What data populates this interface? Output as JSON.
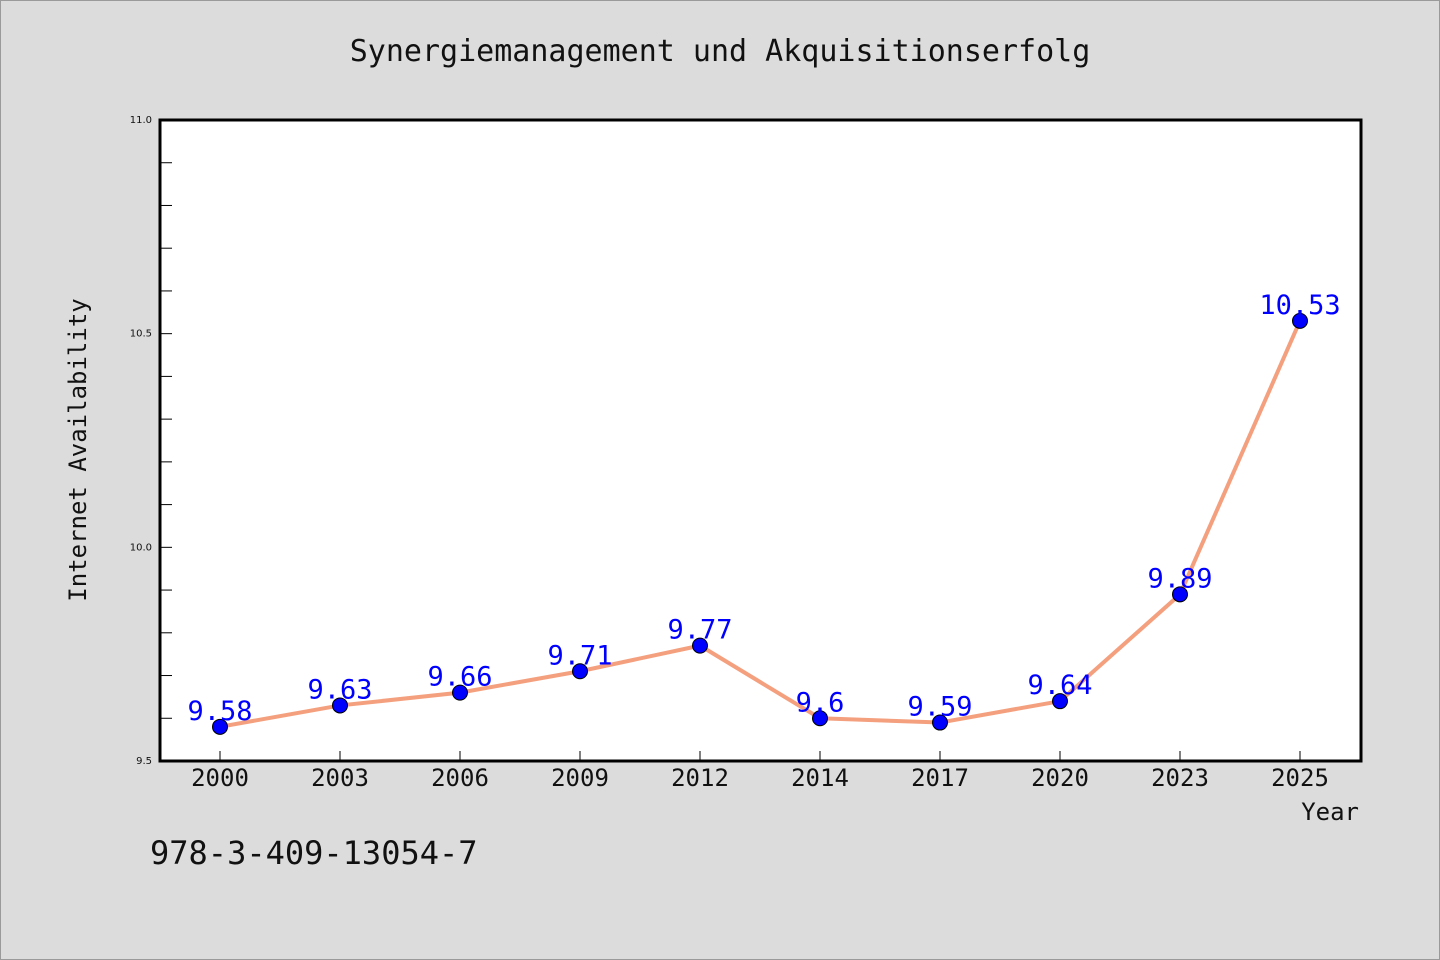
{
  "chart_data": {
    "type": "line",
    "title": "Synergiemanagement und Akquisitionserfolg",
    "xlabel": "Year",
    "ylabel": "Internet Availability",
    "categories": [
      "2000",
      "2003",
      "2006",
      "2009",
      "2012",
      "2014",
      "2017",
      "2020",
      "2023",
      "2025"
    ],
    "series": [
      {
        "values": [
          9.58,
          9.63,
          9.66,
          9.71,
          9.77,
          9.6,
          9.59,
          9.64,
          9.89,
          10.53
        ]
      }
    ],
    "data_labels": [
      "9.58",
      "9.63",
      "9.66",
      "9.71",
      "9.77",
      "9.6",
      "9.59",
      "9.64",
      "9.89",
      "10.53"
    ],
    "ylim": [
      9.5,
      11.0
    ],
    "yticks": [
      "9.5",
      "10.0",
      "10.5",
      "11.0"
    ],
    "grid": false,
    "colors": {
      "line": "#f4a07e",
      "marker": "#0000ff",
      "label": "#0000ff",
      "background": "#dcdcdc",
      "plot_bg": "#ffffff"
    }
  },
  "footer": {
    "isbn": "978-3-409-13054-7"
  }
}
